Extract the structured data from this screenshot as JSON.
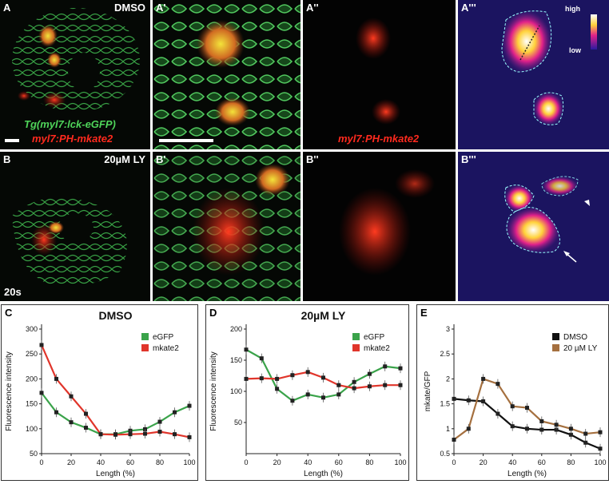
{
  "figure": {
    "rowA": {
      "labels": [
        "A",
        "A'",
        "A''",
        "A'''"
      ],
      "treatment": "DMSO",
      "caption_green": "Tg(myl7:lck-eGFP)",
      "caption_red": "myl7:PH-mkate2",
      "caption_red_2": "myl7:PH-mkate2",
      "heat_high": "high",
      "heat_low": "low"
    },
    "rowB": {
      "labels": [
        "B",
        "B'",
        "B''",
        "B'''"
      ],
      "treatment": "20µM LY",
      "time": "20s"
    },
    "colors": {
      "green": "#3aa34a",
      "red": "#e0352b",
      "black": "#111111",
      "brown": "#a5703f"
    }
  },
  "chart_data": [
    {
      "panel": "C",
      "type": "line",
      "title": "DMSO",
      "xlabel": "Length (%)",
      "ylabel": "Fluorescence intensity",
      "x": [
        0,
        10,
        20,
        30,
        40,
        50,
        60,
        70,
        80,
        90,
        100
      ],
      "xlim": [
        0,
        100
      ],
      "ylim": [
        50,
        300
      ],
      "xticks": [
        "0",
        "20",
        "40",
        "60",
        "80",
        "100"
      ],
      "yticks": [
        "50",
        "100",
        "150",
        "200",
        "250",
        "300"
      ],
      "legend_position": "top-right",
      "series": [
        {
          "name": "eGFP",
          "color": "#3aa34a",
          "values": [
            172,
            133,
            113,
            102,
            89,
            89,
            96,
            99,
            114,
            133,
            146
          ]
        },
        {
          "name": "mkate2",
          "color": "#e0352b",
          "values": [
            268,
            200,
            165,
            130,
            89,
            88,
            89,
            90,
            94,
            89,
            83
          ]
        }
      ]
    },
    {
      "panel": "D",
      "type": "line",
      "title": "20µM LY",
      "xlabel": "Length (%)",
      "ylabel": "Fluorescence intensity",
      "x": [
        0,
        10,
        20,
        30,
        40,
        50,
        60,
        70,
        80,
        90,
        100
      ],
      "xlim": [
        0,
        100
      ],
      "ylim": [
        0,
        200
      ],
      "xticks": [
        "0",
        "20",
        "40",
        "60",
        "80",
        "100"
      ],
      "yticks": [
        "50",
        "100",
        "150",
        "200"
      ],
      "legend_position": "top-right",
      "series": [
        {
          "name": "eGFP",
          "color": "#3aa34a",
          "values": [
            167,
            153,
            104,
            85,
            95,
            90,
            95,
            115,
            128,
            140,
            137
          ]
        },
        {
          "name": "mkate2",
          "color": "#e0352b",
          "values": [
            120,
            121,
            120,
            126,
            131,
            122,
            110,
            105,
            108,
            110,
            110
          ]
        }
      ]
    },
    {
      "panel": "E",
      "type": "line",
      "title": "",
      "xlabel": "Length (%)",
      "ylabel": "mkate/GFP",
      "x": [
        0,
        10,
        20,
        30,
        40,
        50,
        60,
        70,
        80,
        90,
        100
      ],
      "xlim": [
        0,
        100
      ],
      "ylim": [
        0.5,
        3
      ],
      "xticks": [
        "0",
        "20",
        "40",
        "60",
        "80",
        "100"
      ],
      "yticks": [
        "0.5",
        "1",
        "1.5",
        "2",
        "2.5",
        "3"
      ],
      "legend_position": "top-right",
      "series": [
        {
          "name": "DMSO",
          "color": "#111111",
          "values": [
            1.6,
            1.57,
            1.55,
            1.3,
            1.05,
            1.0,
            0.98,
            0.98,
            0.88,
            0.72,
            0.6
          ]
        },
        {
          "name": "20 µM LY",
          "color": "#a5703f",
          "values": [
            0.78,
            1.0,
            2.0,
            1.9,
            1.45,
            1.42,
            1.15,
            1.08,
            1.0,
            0.9,
            0.93
          ]
        }
      ]
    }
  ]
}
